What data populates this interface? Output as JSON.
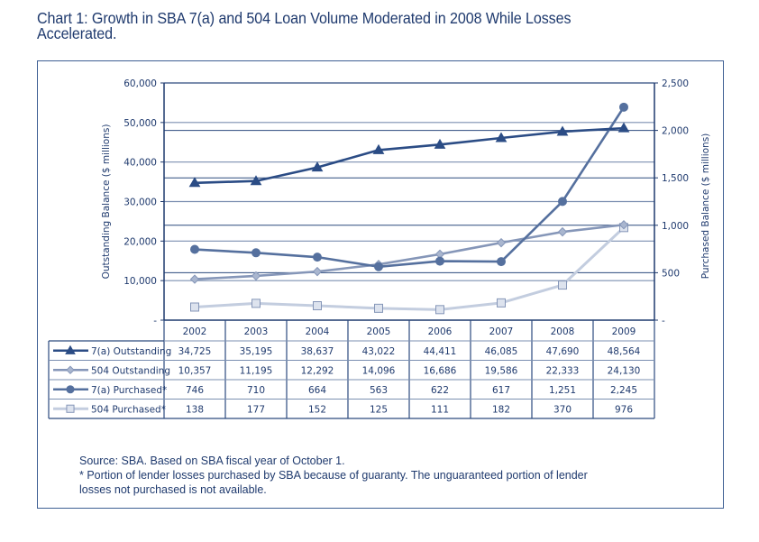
{
  "title": "Chart 1: Growth in SBA 7(a) and 504 Loan Volume Moderated in 2008 While Losses Accelerated.",
  "title_lines": [
    "Chart 1: Growth in SBA 7(a) and 504 Loan Volume Moderated in 2008 While Losses",
    "Accelerated."
  ],
  "notes": {
    "source": "Source: SBA.   Based on SBA fiscal year of October 1.",
    "footnote_line1": "* Portion of lender losses purchased by SBA because of guaranty.  The unguaranteed portion of lender",
    "footnote_line2": "losses not purchased is not available."
  },
  "colors": {
    "text": "#1f3a6e",
    "axis": "#1f3a6e",
    "grid_dark": "#2c4a7e",
    "grid_light": "#7b8fb1",
    "s7a_out": "#2b4c85",
    "s504_out": "#8596b8",
    "s7a_pur": "#55709e",
    "s504_pur": "#c3cddf"
  },
  "chart_data": {
    "type": "line",
    "title": "Chart 1: Growth in SBA 7(a) and 504 Loan Volume Moderated in 2008 While Losses Accelerated.",
    "x": [
      "2002",
      "2003",
      "2004",
      "2005",
      "2006",
      "2007",
      "2008",
      "2009"
    ],
    "ylabel_left": "Outstanding Balance ($ millions)",
    "ylabel_right": "Purchased Balance ($ millions)",
    "ylim_left": [
      0,
      60000
    ],
    "ylim_right": [
      0,
      2500
    ],
    "yticks_left": [
      "-",
      "10,000",
      "20,000",
      "30,000",
      "40,000",
      "50,000",
      "60,000"
    ],
    "yticks_right": [
      "-",
      "500",
      "1,000",
      "1,500",
      "2,000",
      "2,500"
    ],
    "grid": true,
    "legend": "data-table-below",
    "series": [
      {
        "name": "7(a) Outstanding",
        "axis": "left",
        "marker": "triangle",
        "color_key": "s7a_out",
        "values": [
          34725,
          35195,
          38637,
          43022,
          44411,
          46085,
          47690,
          48564
        ],
        "labels": [
          "34,725",
          "35,195",
          "38,637",
          "43,022",
          "44,411",
          "46,085",
          "47,690",
          "48,564"
        ]
      },
      {
        "name": "504 Outstanding",
        "axis": "left",
        "marker": "diamond",
        "color_key": "s504_out",
        "values": [
          10357,
          11195,
          12292,
          14096,
          16686,
          19586,
          22333,
          24130
        ],
        "labels": [
          "10,357",
          "11,195",
          "12,292",
          "14,096",
          "16,686",
          "19,586",
          "22,333",
          "24,130"
        ]
      },
      {
        "name": "7(a) Purchased*",
        "axis": "right",
        "marker": "circle",
        "color_key": "s7a_pur",
        "values": [
          746,
          710,
          664,
          563,
          622,
          617,
          1251,
          2245
        ],
        "labels": [
          "746",
          "710",
          "664",
          "563",
          "622",
          "617",
          "1,251",
          "2,245"
        ]
      },
      {
        "name": "504 Purchased*",
        "axis": "right",
        "marker": "square",
        "color_key": "s504_pur",
        "values": [
          138,
          177,
          152,
          125,
          111,
          182,
          370,
          976
        ],
        "labels": [
          "138",
          "177",
          "152",
          "125",
          "111",
          "182",
          "370",
          "976"
        ]
      }
    ]
  }
}
